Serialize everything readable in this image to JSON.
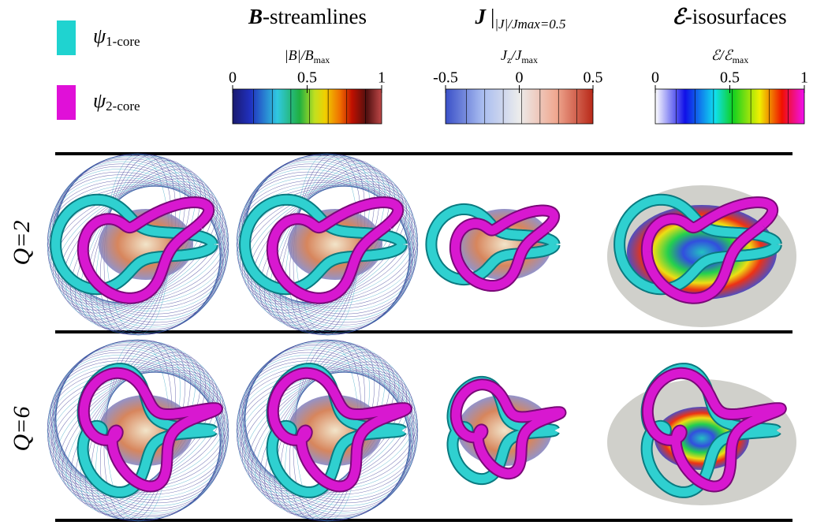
{
  "legend": [
    {
      "symbol": "ψ",
      "sub": "1-core",
      "color": "#1fd3d0"
    },
    {
      "symbol": "ψ",
      "sub": "2-core",
      "color": "#e010d8"
    }
  ],
  "columns": [
    {
      "symbol": "B",
      "text": "-streamlines"
    },
    {
      "symbol": "J",
      "bar": "|",
      "sub": "|J|/Jmax=0.5"
    },
    {
      "symbol": "ℰ",
      "text": "-isosurfaces"
    }
  ],
  "colorbars": [
    {
      "label": [
        {
          "t": "|B|/B"
        },
        {
          "t": "max",
          "sub": true
        }
      ],
      "lim": [
        0,
        1
      ],
      "ticks": [
        0,
        0.5,
        1
      ]
    },
    {
      "label": [
        {
          "t": "J"
        },
        {
          "t": "z",
          "sub": true
        },
        {
          "t": "/J"
        },
        {
          "t": "max",
          "sub": true
        }
      ],
      "lim": [
        -0.5,
        0.5
      ],
      "ticks": [
        -0.5,
        0,
        0.5
      ]
    },
    {
      "label": [
        {
          "t": "ℰ/ℰ"
        },
        {
          "t": "max",
          "sub": true
        }
      ],
      "lim": [
        0,
        1
      ],
      "ticks": [
        0,
        0.5,
        1
      ]
    }
  ],
  "rows": [
    "Q=2",
    "Q=6"
  ]
}
